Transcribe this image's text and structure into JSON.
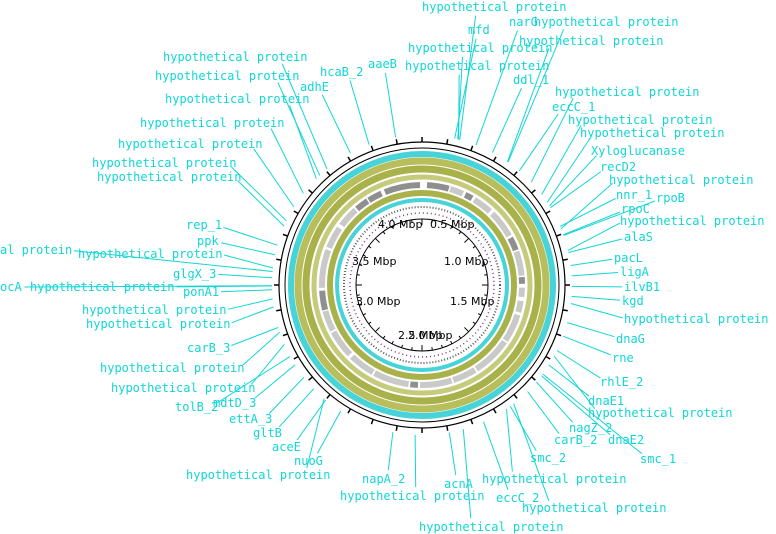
{
  "scale_labels": [
    "4.0 Mbp",
    "0.5 Mbp",
    "3.5 Mbp",
    "1.0 Mbp",
    "3.0 Mbp",
    "1.5 Mbp",
    "2.5 Mbp",
    "2.0 Mbp"
  ],
  "gene_labels": [
    "hypothetical protein",
    "mfd",
    "narG",
    "hypothetical protein",
    "hypothetical protein",
    "hypothetical protein",
    "hypothetical protein",
    "hcaB_2",
    "aaeB",
    "adhE",
    "ddl_1",
    "hypothetical protein",
    "hypothetical protein",
    "hypothetical protein",
    "eccC_1",
    "hypothetical protein",
    "hypothetical protein",
    "hypothetical protein",
    "hypothetical protein",
    "Xyloglucanase",
    "hypothetical protein",
    "recD2",
    "hypothetical protein",
    "hypothetical protein",
    "nnr_1",
    "rpoB",
    "hypothetical protein",
    "rpoC",
    "hypothetical protein",
    "rep_1",
    "alaS",
    "ppk",
    "al protein",
    "hypothetical protein",
    "glgX_3",
    "pacL",
    "ocA",
    "hypothetical protein",
    "ligA",
    "ponA1",
    "ilvB1",
    "kgd",
    "hypothetical protein",
    "hypothetical protein",
    "hypothetical protein",
    "dnaG",
    "carB_3",
    "rne",
    "hypothetical protein",
    "hypothetical protein",
    "rhlE_2",
    "mdtD_3",
    "dnaE1",
    "tolB_2",
    "hypothetical protein",
    "ettA_3",
    "nagZ_2",
    "gltB",
    "carB_2",
    "dnaE2",
    "aceE",
    "smc_1",
    "nuoG",
    "smc_2",
    "hypothetical protein",
    "napA_2",
    "acnA",
    "hypothetical protein",
    "hypothetical protein",
    "eccC_2",
    "hypothetical protein",
    "hypothetical protein"
  ]
}
